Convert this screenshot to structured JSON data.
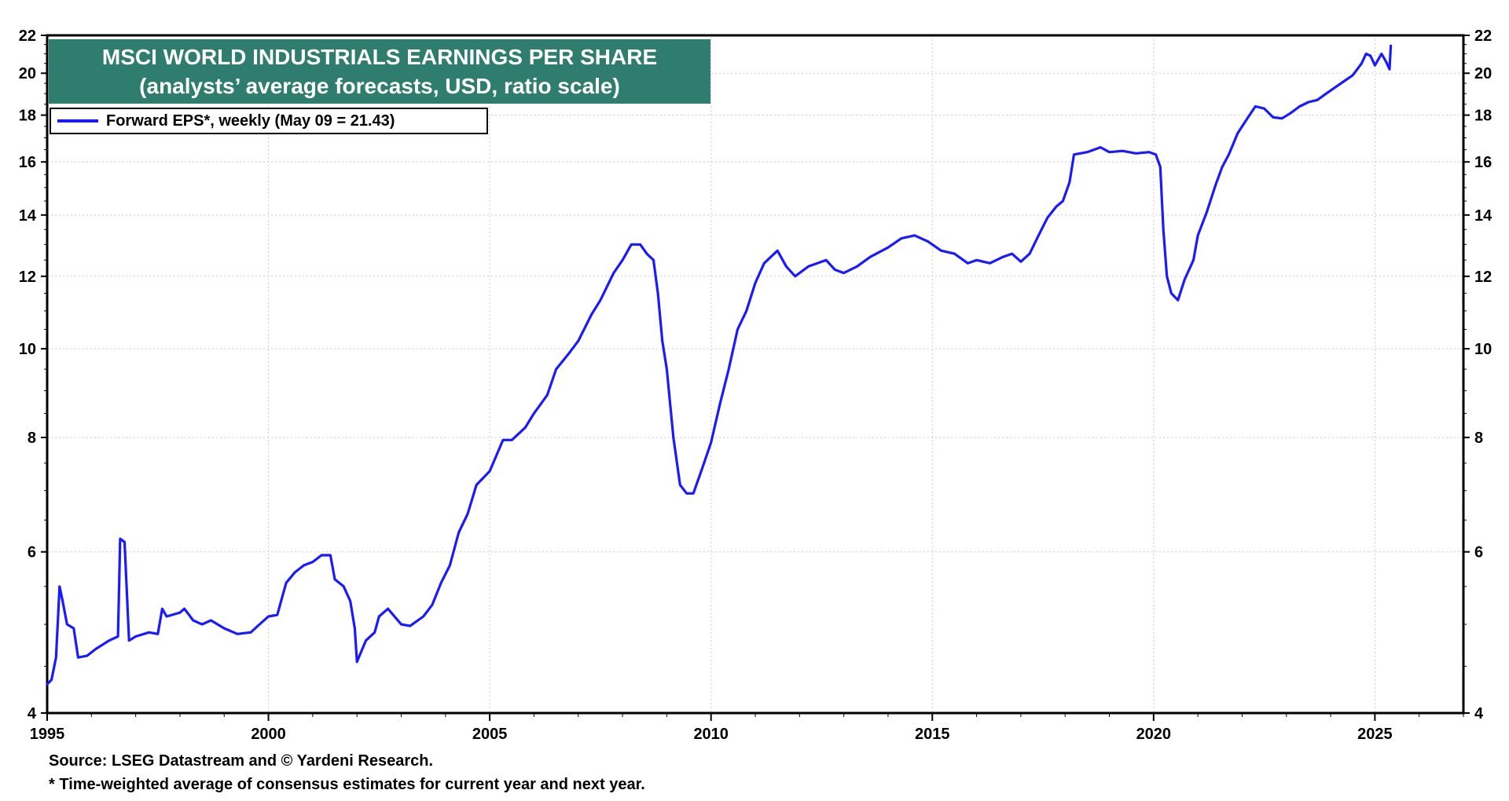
{
  "chart_data": {
    "type": "line",
    "title": "MSCI WORLD INDUSTRIALS EARNINGS PER SHARE",
    "subtitle": "(analysts’ average forecasts, USD, ratio scale)",
    "xlabel": "",
    "ylabel": "",
    "y_scale": "log",
    "xlim": [
      1995,
      2027
    ],
    "ylim": [
      4,
      22
    ],
    "x_ticks": [
      1995,
      2000,
      2005,
      2010,
      2015,
      2020,
      2025
    ],
    "y_ticks": [
      4,
      6,
      8,
      10,
      12,
      14,
      16,
      18,
      20,
      22
    ],
    "grid": true,
    "legend_position": "top-left",
    "series": [
      {
        "name": "Forward EPS*, weekly (May 09 = 21.43)",
        "color": "#1a1aff",
        "points": [
          [
            1995.0,
            4.3
          ],
          [
            1995.1,
            4.35
          ],
          [
            1995.2,
            4.6
          ],
          [
            1995.28,
            5.5
          ],
          [
            1995.35,
            5.3
          ],
          [
            1995.45,
            5.0
          ],
          [
            1995.6,
            4.95
          ],
          [
            1995.7,
            4.6
          ],
          [
            1995.9,
            4.62
          ],
          [
            1996.1,
            4.7
          ],
          [
            1996.4,
            4.8
          ],
          [
            1996.6,
            4.85
          ],
          [
            1996.65,
            6.2
          ],
          [
            1996.75,
            6.15
          ],
          [
            1996.85,
            4.8
          ],
          [
            1997.0,
            4.85
          ],
          [
            1997.3,
            4.9
          ],
          [
            1997.5,
            4.88
          ],
          [
            1997.6,
            5.2
          ],
          [
            1997.7,
            5.1
          ],
          [
            1998.0,
            5.15
          ],
          [
            1998.1,
            5.2
          ],
          [
            1998.3,
            5.05
          ],
          [
            1998.5,
            5.0
          ],
          [
            1998.7,
            5.05
          ],
          [
            1999.0,
            4.95
          ],
          [
            1999.3,
            4.88
          ],
          [
            1999.6,
            4.9
          ],
          [
            1999.8,
            5.0
          ],
          [
            2000.0,
            5.1
          ],
          [
            2000.2,
            5.12
          ],
          [
            2000.4,
            5.55
          ],
          [
            2000.6,
            5.7
          ],
          [
            2000.8,
            5.8
          ],
          [
            2001.0,
            5.85
          ],
          [
            2001.2,
            5.95
          ],
          [
            2001.4,
            5.95
          ],
          [
            2001.5,
            5.6
          ],
          [
            2001.7,
            5.5
          ],
          [
            2001.85,
            5.3
          ],
          [
            2001.95,
            4.95
          ],
          [
            2002.0,
            4.55
          ],
          [
            2002.2,
            4.8
          ],
          [
            2002.4,
            4.9
          ],
          [
            2002.5,
            5.1
          ],
          [
            2002.7,
            5.2
          ],
          [
            2003.0,
            5.0
          ],
          [
            2003.2,
            4.98
          ],
          [
            2003.5,
            5.1
          ],
          [
            2003.7,
            5.25
          ],
          [
            2003.9,
            5.55
          ],
          [
            2004.1,
            5.8
          ],
          [
            2004.3,
            6.3
          ],
          [
            2004.5,
            6.6
          ],
          [
            2004.7,
            7.1
          ],
          [
            2005.0,
            7.35
          ],
          [
            2005.3,
            7.95
          ],
          [
            2005.5,
            7.95
          ],
          [
            2005.8,
            8.2
          ],
          [
            2006.0,
            8.5
          ],
          [
            2006.3,
            8.9
          ],
          [
            2006.5,
            9.5
          ],
          [
            2006.8,
            9.9
          ],
          [
            2007.0,
            10.2
          ],
          [
            2007.3,
            10.9
          ],
          [
            2007.5,
            11.3
          ],
          [
            2007.8,
            12.1
          ],
          [
            2008.0,
            12.5
          ],
          [
            2008.2,
            13.0
          ],
          [
            2008.4,
            13.0
          ],
          [
            2008.55,
            12.7
          ],
          [
            2008.7,
            12.5
          ],
          [
            2008.8,
            11.5
          ],
          [
            2008.9,
            10.2
          ],
          [
            2009.0,
            9.5
          ],
          [
            2009.15,
            8.0
          ],
          [
            2009.3,
            7.1
          ],
          [
            2009.45,
            6.95
          ],
          [
            2009.6,
            6.95
          ],
          [
            2009.8,
            7.4
          ],
          [
            2010.0,
            7.9
          ],
          [
            2010.2,
            8.7
          ],
          [
            2010.4,
            9.5
          ],
          [
            2010.6,
            10.5
          ],
          [
            2010.8,
            11.0
          ],
          [
            2011.0,
            11.8
          ],
          [
            2011.2,
            12.4
          ],
          [
            2011.5,
            12.8
          ],
          [
            2011.7,
            12.3
          ],
          [
            2011.9,
            12.0
          ],
          [
            2012.2,
            12.3
          ],
          [
            2012.4,
            12.4
          ],
          [
            2012.6,
            12.5
          ],
          [
            2012.8,
            12.2
          ],
          [
            2013.0,
            12.1
          ],
          [
            2013.3,
            12.3
          ],
          [
            2013.6,
            12.6
          ],
          [
            2014.0,
            12.9
          ],
          [
            2014.3,
            13.2
          ],
          [
            2014.6,
            13.3
          ],
          [
            2014.9,
            13.1
          ],
          [
            2015.2,
            12.8
          ],
          [
            2015.5,
            12.7
          ],
          [
            2015.8,
            12.4
          ],
          [
            2016.0,
            12.5
          ],
          [
            2016.3,
            12.4
          ],
          [
            2016.6,
            12.6
          ],
          [
            2016.8,
            12.7
          ],
          [
            2017.0,
            12.45
          ],
          [
            2017.2,
            12.7
          ],
          [
            2017.4,
            13.3
          ],
          [
            2017.6,
            13.9
          ],
          [
            2017.8,
            14.3
          ],
          [
            2017.95,
            14.5
          ],
          [
            2018.1,
            15.2
          ],
          [
            2018.2,
            16.3
          ],
          [
            2018.5,
            16.4
          ],
          [
            2018.8,
            16.6
          ],
          [
            2019.0,
            16.4
          ],
          [
            2019.3,
            16.45
          ],
          [
            2019.6,
            16.35
          ],
          [
            2019.9,
            16.4
          ],
          [
            2020.05,
            16.3
          ],
          [
            2020.15,
            15.8
          ],
          [
            2020.22,
            13.5
          ],
          [
            2020.3,
            12.0
          ],
          [
            2020.4,
            11.5
          ],
          [
            2020.55,
            11.3
          ],
          [
            2020.7,
            11.9
          ],
          [
            2020.9,
            12.5
          ],
          [
            2021.0,
            13.3
          ],
          [
            2021.2,
            14.1
          ],
          [
            2021.4,
            15.1
          ],
          [
            2021.55,
            15.8
          ],
          [
            2021.7,
            16.3
          ],
          [
            2021.9,
            17.2
          ],
          [
            2022.1,
            17.8
          ],
          [
            2022.3,
            18.4
          ],
          [
            2022.5,
            18.3
          ],
          [
            2022.7,
            17.9
          ],
          [
            2022.9,
            17.85
          ],
          [
            2023.1,
            18.1
          ],
          [
            2023.3,
            18.4
          ],
          [
            2023.5,
            18.6
          ],
          [
            2023.7,
            18.7
          ],
          [
            2023.9,
            19.0
          ],
          [
            2024.1,
            19.3
          ],
          [
            2024.3,
            19.6
          ],
          [
            2024.5,
            19.9
          ],
          [
            2024.7,
            20.5
          ],
          [
            2024.8,
            21.0
          ],
          [
            2024.9,
            20.9
          ],
          [
            2025.0,
            20.4
          ],
          [
            2025.15,
            21.0
          ],
          [
            2025.25,
            20.6
          ],
          [
            2025.33,
            20.2
          ],
          [
            2025.36,
            21.43
          ]
        ]
      }
    ],
    "annotations": [
      "Source: LSEG Datastream and © Yardeni Research.",
      "* Time-weighted average of consensus estimates for current year and next year."
    ]
  }
}
